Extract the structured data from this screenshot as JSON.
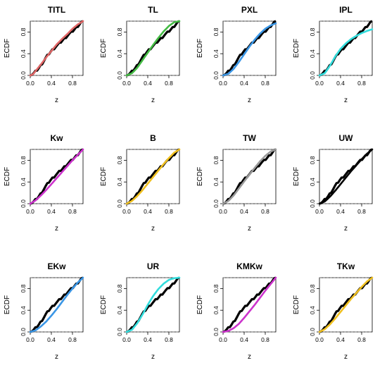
{
  "figure": {
    "xlabel": "z",
    "ylabel": "ECDF",
    "xlim": [
      0.0,
      1.0
    ],
    "ylim": [
      0.0,
      1.0
    ],
    "x_ticks": [
      "0.0",
      "0.4",
      "0.8"
    ],
    "y_ticks": [
      "0.0",
      "0.4",
      "0.8"
    ]
  },
  "chart_data": [
    {
      "type": "line",
      "title": "TITL",
      "color": "#e06666",
      "ecdf_line_color": "#000000",
      "grid": false,
      "series": [
        {
          "x": [
            0,
            0.05,
            0.1,
            0.2,
            0.3,
            0.4,
            0.5,
            0.6,
            0.7,
            0.8,
            0.9,
            1.0
          ],
          "y": [
            0,
            0.02,
            0.08,
            0.2,
            0.33,
            0.45,
            0.57,
            0.67,
            0.76,
            0.86,
            0.94,
            1.0
          ]
        }
      ]
    },
    {
      "type": "line",
      "title": "TL",
      "color": "#44bb44",
      "ecdf_line_color": "#000000",
      "grid": false,
      "series": [
        {
          "x": [
            0,
            0.1,
            0.2,
            0.3,
            0.4,
            0.5,
            0.6,
            0.7,
            0.8,
            0.9,
            1.0
          ],
          "y": [
            0,
            0.04,
            0.14,
            0.28,
            0.42,
            0.56,
            0.69,
            0.81,
            0.91,
            0.98,
            1.0
          ]
        }
      ]
    },
    {
      "type": "line",
      "title": "PXL",
      "color": "#3a96e6",
      "ecdf_line_color": "#000000",
      "grid": false,
      "series": [
        {
          "x": [
            0,
            0.1,
            0.2,
            0.3,
            0.4,
            0.5,
            0.6,
            0.7,
            0.8,
            0.9,
            1.0
          ],
          "y": [
            0,
            0.03,
            0.12,
            0.25,
            0.39,
            0.53,
            0.66,
            0.77,
            0.86,
            0.92,
            0.96
          ]
        }
      ]
    },
    {
      "type": "line",
      "title": "IPL",
      "color": "#33dddd",
      "ecdf_line_color": "#000000",
      "grid": false,
      "series": [
        {
          "x": [
            0,
            0.1,
            0.2,
            0.3,
            0.4,
            0.5,
            0.6,
            0.7,
            0.8,
            0.9,
            1.0
          ],
          "y": [
            0,
            0.04,
            0.18,
            0.35,
            0.49,
            0.59,
            0.67,
            0.73,
            0.78,
            0.82,
            0.85
          ]
        }
      ]
    },
    {
      "type": "line",
      "title": "Kw",
      "color": "#cc33cc",
      "ecdf_line_color": "#000000",
      "grid": false,
      "series": [
        {
          "x": [
            0,
            0.1,
            0.2,
            0.3,
            0.4,
            0.5,
            0.6,
            0.7,
            0.8,
            0.9,
            1.0
          ],
          "y": [
            0,
            0.06,
            0.15,
            0.25,
            0.36,
            0.47,
            0.58,
            0.69,
            0.8,
            0.9,
            1.0
          ]
        }
      ]
    },
    {
      "type": "line",
      "title": "B",
      "color": "#f0c020",
      "ecdf_line_color": "#000000",
      "grid": false,
      "series": [
        {
          "x": [
            0,
            0.1,
            0.2,
            0.3,
            0.4,
            0.5,
            0.6,
            0.7,
            0.8,
            0.9,
            1.0
          ],
          "y": [
            0,
            0.05,
            0.14,
            0.25,
            0.37,
            0.49,
            0.61,
            0.73,
            0.84,
            0.94,
            1.0
          ]
        }
      ]
    },
    {
      "type": "line",
      "title": "TW",
      "color": "#999999",
      "ecdf_line_color": "#000000",
      "grid": false,
      "series": [
        {
          "x": [
            0,
            0.1,
            0.2,
            0.3,
            0.4,
            0.5,
            0.6,
            0.7,
            0.8,
            0.9,
            1.0
          ],
          "y": [
            0,
            0.05,
            0.15,
            0.28,
            0.41,
            0.54,
            0.66,
            0.78,
            0.88,
            0.96,
            1.0
          ]
        }
      ]
    },
    {
      "type": "line",
      "title": "UW",
      "color": "#000000",
      "ecdf_line_color": "#000000",
      "grid": false,
      "series": [
        {
          "x": [
            0,
            0.1,
            0.2,
            0.3,
            0.4,
            0.5,
            0.6,
            0.7,
            0.8,
            0.9,
            1.0
          ],
          "y": [
            0,
            0.04,
            0.13,
            0.24,
            0.36,
            0.48,
            0.6,
            0.71,
            0.82,
            0.92,
            1.0
          ]
        }
      ]
    },
    {
      "type": "line",
      "title": "EKw",
      "color": "#3a96e6",
      "ecdf_line_color": "#000000",
      "grid": false,
      "series": [
        {
          "x": [
            0,
            0.1,
            0.2,
            0.3,
            0.4,
            0.5,
            0.6,
            0.7,
            0.8,
            0.9,
            1.0
          ],
          "y": [
            0,
            0.03,
            0.1,
            0.19,
            0.3,
            0.42,
            0.55,
            0.68,
            0.8,
            0.91,
            1.0
          ]
        }
      ]
    },
    {
      "type": "line",
      "title": "UR",
      "color": "#33dddd",
      "ecdf_line_color": "#000000",
      "grid": false,
      "series": [
        {
          "x": [
            0,
            0.1,
            0.2,
            0.3,
            0.4,
            0.5,
            0.6,
            0.7,
            0.8,
            0.9,
            1.0
          ],
          "y": [
            0,
            0.04,
            0.16,
            0.32,
            0.5,
            0.66,
            0.79,
            0.89,
            0.96,
            0.99,
            1.0
          ]
        }
      ]
    },
    {
      "type": "line",
      "title": "KMKw",
      "color": "#cc33cc",
      "ecdf_line_color": "#000000",
      "grid": false,
      "series": [
        {
          "x": [
            0,
            0.1,
            0.2,
            0.3,
            0.4,
            0.5,
            0.6,
            0.7,
            0.8,
            0.9,
            1.0
          ],
          "y": [
            0,
            0.02,
            0.07,
            0.15,
            0.26,
            0.38,
            0.5,
            0.63,
            0.76,
            0.88,
            1.0
          ]
        }
      ]
    },
    {
      "type": "line",
      "title": "TKw",
      "color": "#f0c020",
      "ecdf_line_color": "#000000",
      "grid": false,
      "series": [
        {
          "x": [
            0,
            0.1,
            0.2,
            0.3,
            0.4,
            0.5,
            0.6,
            0.7,
            0.8,
            0.9,
            1.0
          ],
          "y": [
            0,
            0.05,
            0.14,
            0.25,
            0.37,
            0.49,
            0.61,
            0.72,
            0.83,
            0.93,
            1.0
          ]
        }
      ]
    }
  ],
  "ecdf_points": {
    "y": [
      0.0,
      0.016,
      0.036,
      0.068,
      0.1,
      0.134,
      0.176,
      0.222,
      0.27,
      0.318,
      0.36,
      0.4,
      0.436,
      0.468,
      0.5,
      0.53,
      0.558,
      0.586,
      0.616,
      0.646,
      0.676,
      0.706,
      0.736,
      0.764,
      0.79,
      0.818,
      0.848,
      0.878,
      0.912,
      0.948,
      0.982,
      1.0
    ]
  }
}
